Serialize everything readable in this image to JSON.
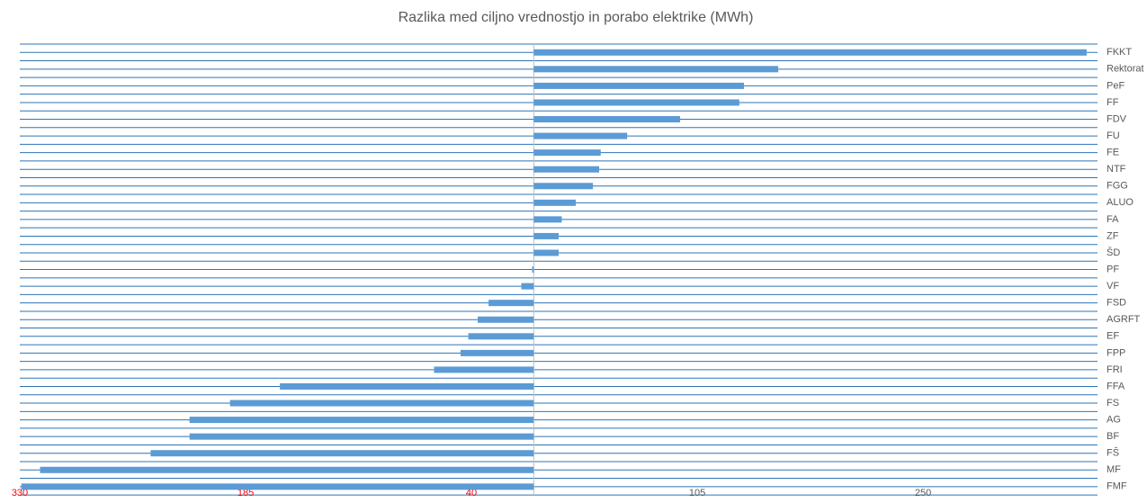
{
  "chart_data": {
    "type": "barh",
    "title": "Razlika med ciljno vrednostjo in porabo elektrike (MWh)",
    "categories": [
      "FKKT",
      "Rektorat",
      "PeF",
      "FF",
      "FDV",
      "FU",
      "FE",
      "NTF",
      "FGG",
      "ALUO",
      "FA",
      "ZF",
      "ŠD",
      "PF",
      "VF",
      "FSD",
      "AGRFT",
      "EF",
      "FPP",
      "FRI",
      "FFA",
      "FS",
      "AG",
      "BF",
      "FŠ",
      "MF",
      "FMF"
    ],
    "values": [
      355,
      157,
      135,
      132,
      94,
      60,
      43,
      42,
      38,
      27,
      18,
      16,
      16,
      -1,
      -8,
      -29,
      -36,
      -42,
      -47,
      -64,
      -163,
      -195,
      -221,
      -221,
      -246,
      -317,
      -329
    ],
    "color": "#5b9bd5",
    "grid_color": "#2e75b6",
    "negative_tick_color": "#ff0000",
    "tick_color": "#595959",
    "xlim": [
      -330,
      362
    ],
    "xticks": [
      {
        "value": -330,
        "label": "330"
      },
      {
        "value": -185,
        "label": "185"
      },
      {
        "value": -40,
        "label": "40"
      },
      105,
      250
    ]
  }
}
